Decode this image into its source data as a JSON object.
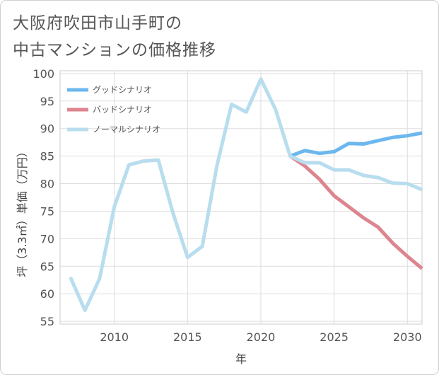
{
  "title_lines": [
    "大阪府吹田市山手町の",
    "中古マンションの価格推移"
  ],
  "chart_data": {
    "type": "line",
    "title": "大阪府吹田市山手町の中古マンションの価格推移",
    "xlabel": "年",
    "ylabel": "坪（3.3㎡）単価（万円）",
    "xlim": [
      2006.3,
      2031
    ],
    "ylim": [
      54.5,
      100.5
    ],
    "xticks": [
      2010,
      2015,
      2020,
      2025,
      2030
    ],
    "yticks": [
      55,
      60,
      65,
      70,
      75,
      80,
      85,
      90,
      95,
      100
    ],
    "grid": true,
    "legend_position": "top-left",
    "colors": {
      "good": "#6cb8ee",
      "bad": "#dd858f",
      "normal": "#b8ddee"
    },
    "series": [
      {
        "name": "ノーマルシナリオ",
        "key": "normal",
        "x": [
          2007,
          2008,
          2009,
          2010,
          2011,
          2012,
          2013,
          2014,
          2015,
          2016,
          2017,
          2018,
          2019,
          2020,
          2021,
          2022,
          2023,
          2024,
          2025,
          2026,
          2027,
          2028,
          2029,
          2030,
          2031
        ],
        "values": [
          63.0,
          57.0,
          62.8,
          75.8,
          83.4,
          84.1,
          84.3,
          74.7,
          66.6,
          68.6,
          83.2,
          94.4,
          93.0,
          99.0,
          93.5,
          85.0,
          83.8,
          83.8,
          82.5,
          82.5,
          81.5,
          81.1,
          80.1,
          80.0,
          78.9
        ]
      },
      {
        "name": "グッドシナリオ",
        "key": "good",
        "x": [
          2022,
          2023,
          2024,
          2025,
          2026,
          2027,
          2028,
          2029,
          2030,
          2031
        ],
        "values": [
          85.0,
          86.0,
          85.5,
          85.8,
          87.3,
          87.2,
          87.8,
          88.4,
          88.7,
          89.2
        ]
      },
      {
        "name": "バッドシナリオ",
        "key": "bad",
        "x": [
          2022,
          2023,
          2024,
          2025,
          2026,
          2027,
          2028,
          2029,
          2030,
          2031
        ],
        "values": [
          85.0,
          83.2,
          80.8,
          77.8,
          75.8,
          73.8,
          72.1,
          69.2,
          66.8,
          64.6
        ]
      }
    ],
    "legend": [
      {
        "label": "グッドシナリオ",
        "key": "good"
      },
      {
        "label": "バッドシナリオ",
        "key": "bad"
      },
      {
        "label": "ノーマルシナリオ",
        "key": "normal"
      }
    ]
  }
}
